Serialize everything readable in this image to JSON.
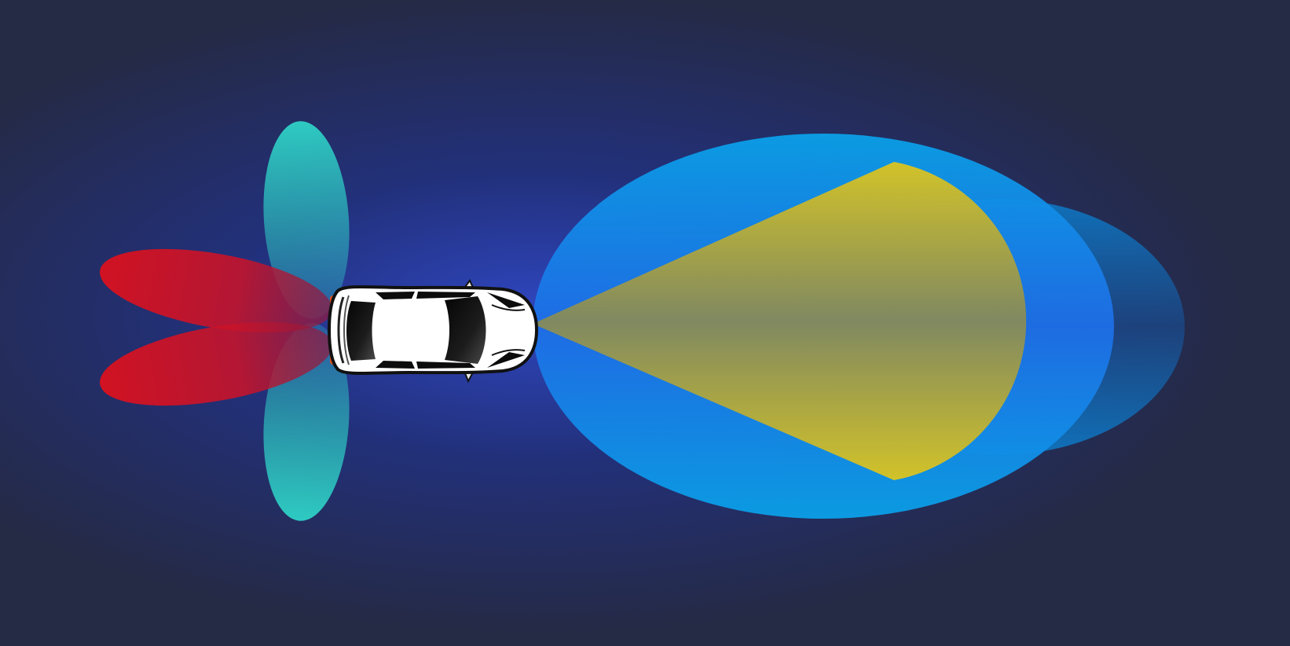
{
  "colors": {
    "background_edge": "#252a45",
    "background_glow": "#2f46c0",
    "long_range_radar": "#0a9fe6",
    "camera_fov": "#d4c22a",
    "side_sensors": "#2ed9cc",
    "rear_sensors": "#e0101c",
    "car_body": "#ffffff",
    "car_glass": "#0c0c0c",
    "car_outline": "#111111",
    "tail_lights": "#e3511d"
  },
  "legend_items": [
    {
      "name": "long-range-radar-zone",
      "color": "#0a9fe6"
    },
    {
      "name": "front-camera-zone",
      "color": "#d4c22a"
    },
    {
      "name": "side-sensor-zone",
      "color": "#2ed9cc"
    },
    {
      "name": "rear-sensor-zone",
      "color": "#e0101c"
    }
  ],
  "icon": "car-top-view-icon"
}
